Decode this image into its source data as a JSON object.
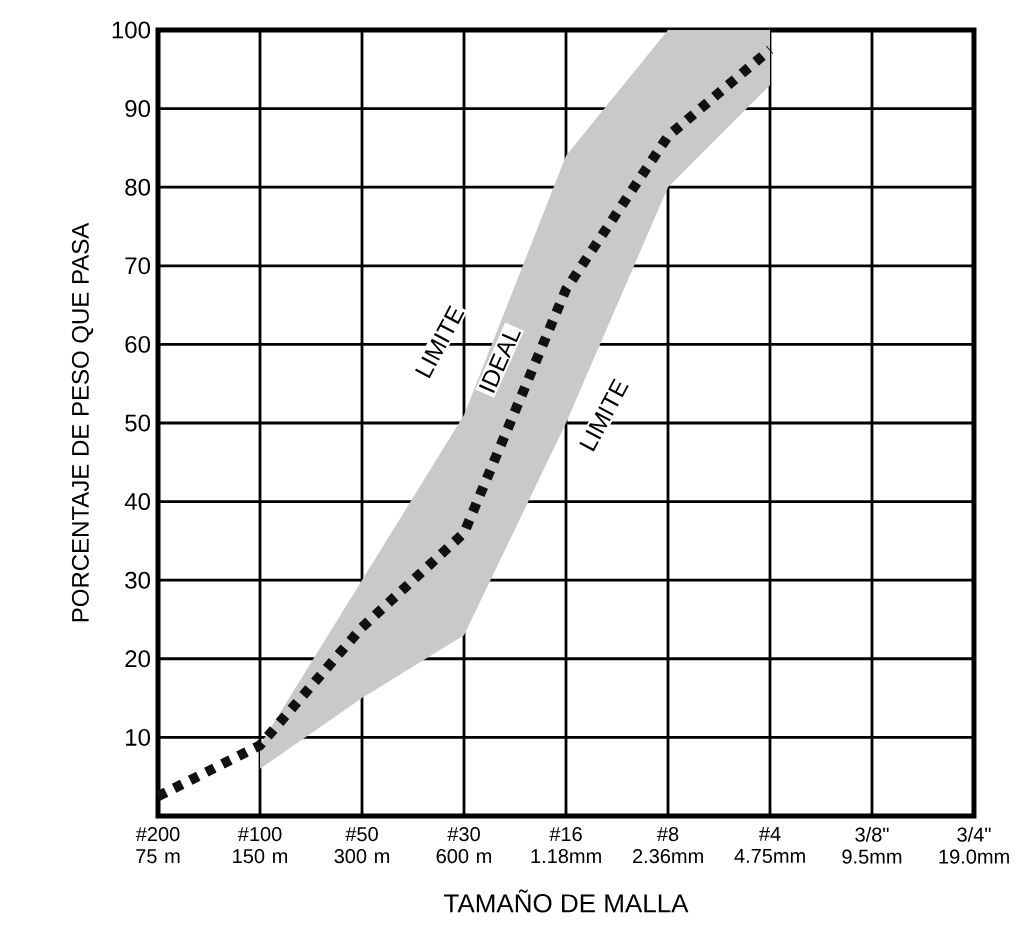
{
  "chart_data": {
    "type": "line",
    "categories": [
      "#200 75 m",
      "#100 150 m",
      "#50 300 m",
      "#30 600 m",
      "#16 1.18mm",
      "#8 2.36mm",
      "#4 4.75mm",
      "3/8\" 9.5mm",
      "3/4\" 19.0mm"
    ],
    "series": [
      {
        "color": "#111111",
        "line_style": "dotted",
        "values": [
          2.5,
          9,
          24,
          36,
          67,
          86.5,
          97.5,
          null,
          null
        ],
        "lower": [
          null,
          6,
          15,
          23,
          50,
          80,
          93,
          null,
          null
        ],
        "upper": [
          null,
          9,
          30,
          51,
          84,
          100,
          100,
          null,
          null
        ]
      }
    ],
    "xlabel": "TAMAÑO DE MALLA",
    "ylabel": "PORCENTAJE DE PESO QUE PASA",
    "ylim": [
      0,
      100
    ],
    "yticks": [
      10,
      20,
      30,
      40,
      50,
      60,
      70,
      80,
      90,
      100
    ],
    "grid": true,
    "annotations": [
      "LIMITE",
      "IDEAL",
      "LIMITE"
    ]
  }
}
